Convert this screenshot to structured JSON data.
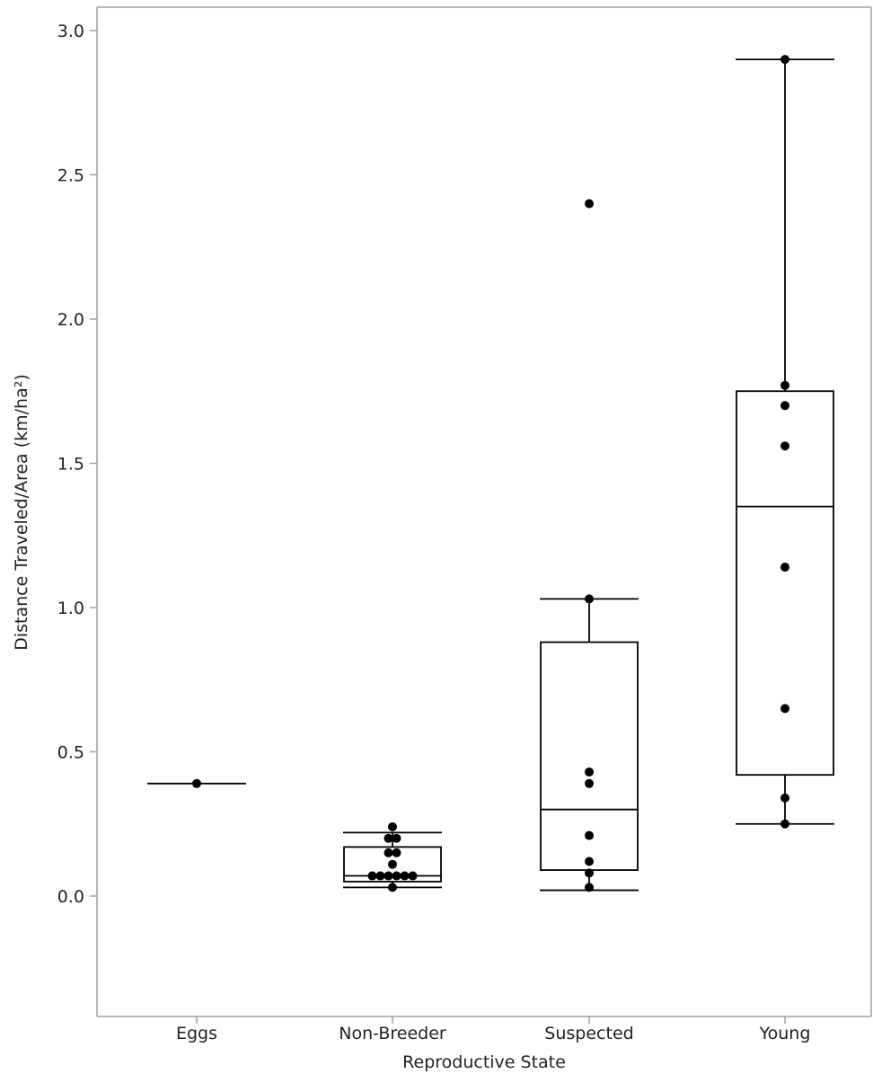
{
  "chart_data": {
    "type": "box",
    "title": "",
    "xlabel": "Reproductive State",
    "ylabel": "Distance Traveled/Area (km/ha²)",
    "ylim": [
      -0.42,
      3.08
    ],
    "yticks": [
      0.0,
      0.5,
      1.0,
      1.5,
      2.0,
      2.5,
      3.0
    ],
    "ytick_labels": [
      "0.0",
      "0.5",
      "1.0",
      "1.5",
      "2.0",
      "2.5",
      "3.0"
    ],
    "categories": [
      "Eggs",
      "Non-Breeder",
      "Suspected",
      "Young"
    ],
    "grid": false,
    "legend": "none",
    "boxes": [
      {
        "category": "Eggs",
        "whisker_low": 0.39,
        "q1": 0.39,
        "median": 0.39,
        "q3": 0.39,
        "whisker_high": 0.39
      },
      {
        "category": "Non-Breeder",
        "whisker_low": 0.03,
        "q1": 0.05,
        "median": 0.07,
        "q3": 0.17,
        "whisker_high": 0.22
      },
      {
        "category": "Suspected",
        "whisker_low": 0.02,
        "q1": 0.09,
        "median": 0.3,
        "q3": 0.88,
        "whisker_high": 1.03
      },
      {
        "category": "Young",
        "whisker_low": 0.25,
        "q1": 0.42,
        "median": 1.35,
        "q3": 1.75,
        "whisker_high": 2.9
      }
    ],
    "points": [
      {
        "category": "Eggs",
        "values": [
          0.39
        ],
        "offsets": [
          0
        ]
      },
      {
        "category": "Non-Breeder",
        "values": [
          0.24,
          0.2,
          0.2,
          0.15,
          0.15,
          0.11,
          0.07,
          0.07,
          0.07,
          0.07,
          0.07,
          0.07,
          0.03
        ],
        "offsets": [
          0,
          -0.5,
          0.5,
          -0.5,
          0.5,
          0,
          -2.5,
          -1.5,
          -0.5,
          0.5,
          1.5,
          2.5,
          0
        ]
      },
      {
        "category": "Suspected",
        "values": [
          2.4,
          1.03,
          0.43,
          0.39,
          0.21,
          0.12,
          0.08,
          0.03
        ],
        "offsets": [
          0,
          0,
          0,
          0,
          0,
          0,
          0,
          0
        ]
      },
      {
        "category": "Young",
        "values": [
          2.9,
          1.77,
          1.7,
          1.56,
          1.14,
          0.65,
          0.34,
          0.25
        ],
        "offsets": [
          0,
          0,
          0,
          0,
          0,
          0,
          0,
          0
        ]
      }
    ],
    "colors": {
      "mark": "#000000",
      "frame": "#a0a0a0",
      "text": "#222222"
    }
  }
}
